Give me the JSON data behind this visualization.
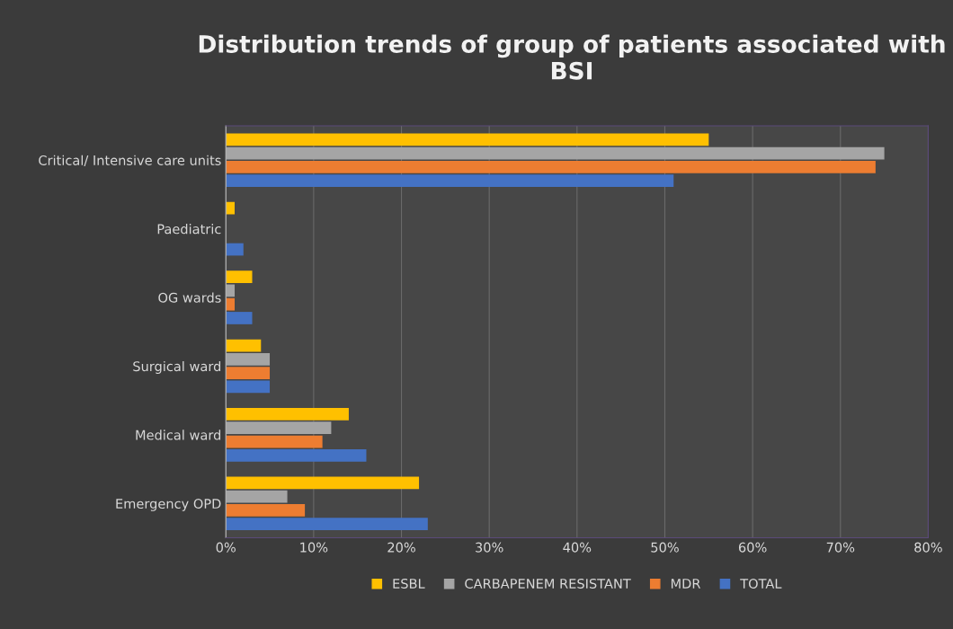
{
  "chart_data": {
    "type": "bar",
    "orientation": "horizontal",
    "title": "Distribution trends of group of patients associated with BSI",
    "categories": [
      "Critical/ Intensive care units",
      "Paediatric",
      "OG wards",
      "Surgical ward",
      "Medical ward",
      "Emergency OPD"
    ],
    "series": [
      {
        "name": "ESBL",
        "color": "#ffc000",
        "values": [
          55,
          1,
          3,
          4,
          14,
          22
        ]
      },
      {
        "name": "CARBAPENEM RESISTANT",
        "color": "#a5a5a5",
        "values": [
          75,
          0,
          1,
          5,
          12,
          7
        ]
      },
      {
        "name": "MDR",
        "color": "#ed7d31",
        "values": [
          74,
          0,
          1,
          5,
          11,
          9
        ]
      },
      {
        "name": "TOTAL",
        "color": "#4472c4",
        "values": [
          51,
          2,
          3,
          5,
          16,
          23
        ]
      }
    ],
    "xlim": [
      0,
      80
    ],
    "xticks": [
      {
        "value": 0,
        "label": "0%"
      },
      {
        "value": 10,
        "label": "10%"
      },
      {
        "value": 20,
        "label": "20%"
      },
      {
        "value": 30,
        "label": "30%"
      },
      {
        "value": 40,
        "label": "40%"
      },
      {
        "value": 50,
        "label": "50%"
      },
      {
        "value": 60,
        "label": "60%"
      },
      {
        "value": 70,
        "label": "70%"
      },
      {
        "value": 80,
        "label": "80%"
      }
    ],
    "grid": "x",
    "legend": "bottom"
  }
}
